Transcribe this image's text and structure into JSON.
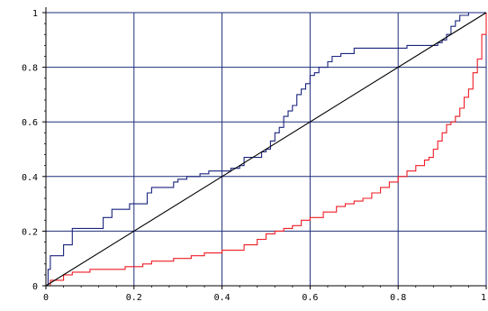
{
  "chart_data": {
    "type": "line",
    "title": "",
    "xlabel": "",
    "ylabel": "",
    "xlim": [
      0,
      1
    ],
    "ylim": [
      0,
      1
    ],
    "grid": true,
    "grid_color": "#1f2f7a",
    "x_ticks": [
      0,
      0.2,
      0.4,
      0.6,
      0.8,
      1
    ],
    "y_ticks": [
      0,
      0.2,
      0.4,
      0.6,
      0.8,
      1
    ],
    "x_tick_labels": [
      "0",
      "0.2",
      "0.4",
      "0.6",
      "0.8",
      "1"
    ],
    "y_tick_labels": [
      "0",
      "0.2",
      "0.4",
      "0.6",
      "0.8",
      "1"
    ],
    "series": [
      {
        "color": "#1a237e",
        "step": true,
        "x": [
          0,
          0.005,
          0.01,
          0.04,
          0.06,
          0.13,
          0.15,
          0.19,
          0.2,
          0.23,
          0.24,
          0.29,
          0.3,
          0.32,
          0.35,
          0.37,
          0.38,
          0.4,
          0.42,
          0.44,
          0.45,
          0.48,
          0.49,
          0.5,
          0.51,
          0.52,
          0.53,
          0.54,
          0.55,
          0.56,
          0.57,
          0.58,
          0.59,
          0.6,
          0.61,
          0.62,
          0.64,
          0.65,
          0.67,
          0.7,
          0.74,
          0.8,
          0.82,
          0.87,
          0.89,
          0.9,
          0.91,
          0.92,
          0.93,
          0.94,
          0.96,
          0.98,
          1.0
        ],
        "y": [
          0,
          0.06,
          0.11,
          0.15,
          0.21,
          0.25,
          0.28,
          0.3,
          0.3,
          0.34,
          0.36,
          0.38,
          0.39,
          0.4,
          0.41,
          0.42,
          0.42,
          0.42,
          0.43,
          0.44,
          0.47,
          0.47,
          0.49,
          0.5,
          0.53,
          0.56,
          0.58,
          0.62,
          0.64,
          0.66,
          0.7,
          0.72,
          0.74,
          0.77,
          0.78,
          0.8,
          0.82,
          0.84,
          0.85,
          0.87,
          0.87,
          0.87,
          0.88,
          0.88,
          0.89,
          0.9,
          0.92,
          0.95,
          0.97,
          0.99,
          1.0,
          1.0,
          1.0
        ]
      },
      {
        "color": "#ee1c25",
        "step": true,
        "x": [
          0,
          0.01,
          0.04,
          0.06,
          0.1,
          0.15,
          0.18,
          0.22,
          0.24,
          0.29,
          0.33,
          0.36,
          0.4,
          0.45,
          0.48,
          0.5,
          0.52,
          0.54,
          0.56,
          0.58,
          0.6,
          0.63,
          0.66,
          0.68,
          0.7,
          0.72,
          0.74,
          0.76,
          0.78,
          0.8,
          0.82,
          0.84,
          0.86,
          0.87,
          0.88,
          0.89,
          0.9,
          0.91,
          0.92,
          0.93,
          0.94,
          0.95,
          0.96,
          0.97,
          0.98,
          0.99,
          1.0
        ],
        "y": [
          0,
          0.02,
          0.04,
          0.05,
          0.06,
          0.06,
          0.07,
          0.08,
          0.09,
          0.1,
          0.11,
          0.12,
          0.13,
          0.15,
          0.17,
          0.19,
          0.2,
          0.21,
          0.22,
          0.24,
          0.25,
          0.27,
          0.29,
          0.3,
          0.31,
          0.32,
          0.34,
          0.36,
          0.38,
          0.4,
          0.42,
          0.44,
          0.46,
          0.47,
          0.5,
          0.53,
          0.56,
          0.59,
          0.6,
          0.62,
          0.65,
          0.69,
          0.72,
          0.78,
          0.83,
          0.92,
          1.0
        ]
      },
      {
        "color": "#000000",
        "step": false,
        "x": [
          0,
          1
        ],
        "y": [
          0,
          1
        ]
      }
    ]
  }
}
